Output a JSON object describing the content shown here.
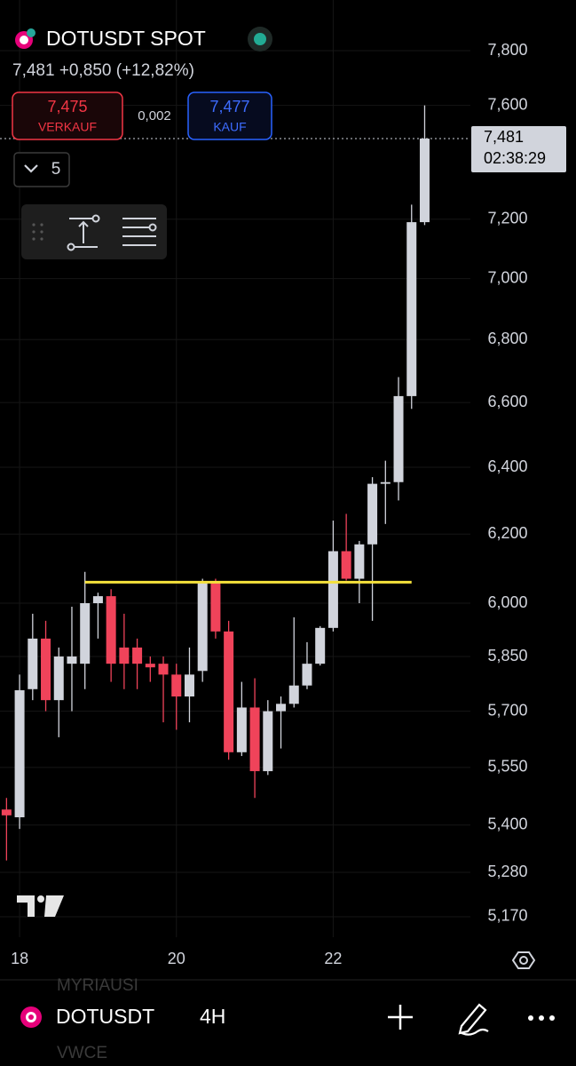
{
  "header": {
    "symbol_title": "DOTUSDT SPOT",
    "quote": "7,481 +0,850 (+12,82%)",
    "sell_price": "7,475",
    "sell_label": "VERKAUF",
    "spread": "0,002",
    "buy_price": "7,477",
    "buy_label": "KAUF",
    "dropdown": "5"
  },
  "chart_data": {
    "type": "candlestick",
    "log_scale": true,
    "grid": true,
    "up_color": "#d1d4dc",
    "down_color": "#f0435a",
    "categories": [
      null,
      "18",
      null,
      null,
      null,
      null,
      null,
      null,
      null,
      null,
      null,
      null,
      null,
      "20",
      null,
      null,
      null,
      null,
      null,
      null,
      null,
      null,
      null,
      null,
      null,
      "22",
      null,
      null,
      null,
      null,
      null,
      null,
      null
    ],
    "open": [
      5.44,
      5.42,
      5.76,
      5.9,
      5.73,
      5.83,
      5.83,
      6.0,
      6.02,
      5.875,
      5.875,
      5.83,
      5.83,
      5.8,
      5.74,
      5.81,
      6.06,
      5.92,
      5.59,
      5.71,
      5.54,
      5.7,
      5.72,
      5.77,
      5.83,
      5.93,
      6.15,
      6.07,
      6.17,
      6.35,
      6.355,
      6.62,
      7.19
    ],
    "high": [
      5.47,
      5.8,
      5.97,
      5.95,
      5.875,
      5.99,
      6.09,
      6.03,
      6.04,
      5.97,
      5.9,
      5.85,
      5.85,
      5.83,
      5.875,
      6.07,
      6.07,
      5.95,
      5.78,
      5.79,
      5.73,
      5.74,
      5.96,
      5.89,
      5.935,
      6.24,
      6.26,
      6.18,
      6.37,
      6.42,
      6.68,
      7.25,
      7.6
    ],
    "low": [
      5.31,
      5.39,
      5.73,
      5.7,
      5.63,
      5.7,
      5.76,
      5.9,
      5.78,
      5.76,
      5.76,
      5.78,
      5.67,
      5.65,
      5.67,
      5.78,
      5.9,
      5.57,
      5.58,
      5.47,
      5.53,
      5.6,
      5.71,
      5.76,
      5.825,
      5.92,
      6.065,
      6.0,
      5.95,
      6.23,
      6.3,
      6.58,
      7.18
    ],
    "close": [
      5.425,
      5.757,
      5.9,
      5.73,
      5.85,
      5.85,
      6.0,
      6.02,
      5.83,
      5.83,
      5.83,
      5.82,
      5.8,
      5.74,
      5.8,
      6.06,
      5.92,
      5.59,
      5.71,
      5.54,
      5.7,
      5.72,
      5.77,
      5.83,
      5.93,
      6.15,
      6.07,
      6.17,
      6.35,
      6.355,
      6.62,
      7.19,
      7.481
    ],
    "ylim": [
      5.12,
      7.99
    ],
    "yticks": [
      {
        "value": 7.8,
        "label": "7,800"
      },
      {
        "value": 7.6,
        "label": "7,600"
      },
      {
        "value": 7.2,
        "label": "7,200"
      },
      {
        "value": 7.0,
        "label": "7,000"
      },
      {
        "value": 6.8,
        "label": "6,800"
      },
      {
        "value": 6.6,
        "label": "6,600"
      },
      {
        "value": 6.4,
        "label": "6,400"
      },
      {
        "value": 6.2,
        "label": "6,200"
      },
      {
        "value": 6.0,
        "label": "6,000"
      },
      {
        "value": 5.85,
        "label": "5,850"
      },
      {
        "value": 5.7,
        "label": "5,700"
      },
      {
        "value": 5.55,
        "label": "5,550"
      },
      {
        "value": 5.4,
        "label": "5,400"
      },
      {
        "value": 5.28,
        "label": "5,280"
      },
      {
        "value": 5.17,
        "label": "5,170"
      }
    ],
    "last_price": {
      "value": 7.481,
      "label": "7,481"
    },
    "countdown": "02:38:29",
    "hline": {
      "value": 6.06,
      "color": "#f5e13b",
      "start": 6,
      "end": 31
    }
  },
  "bottom_bar": {
    "symbol": "DOTUSDT",
    "interval": "4H",
    "faded_top": "MYRIAUSI",
    "faded_bottom": "VWCE"
  }
}
